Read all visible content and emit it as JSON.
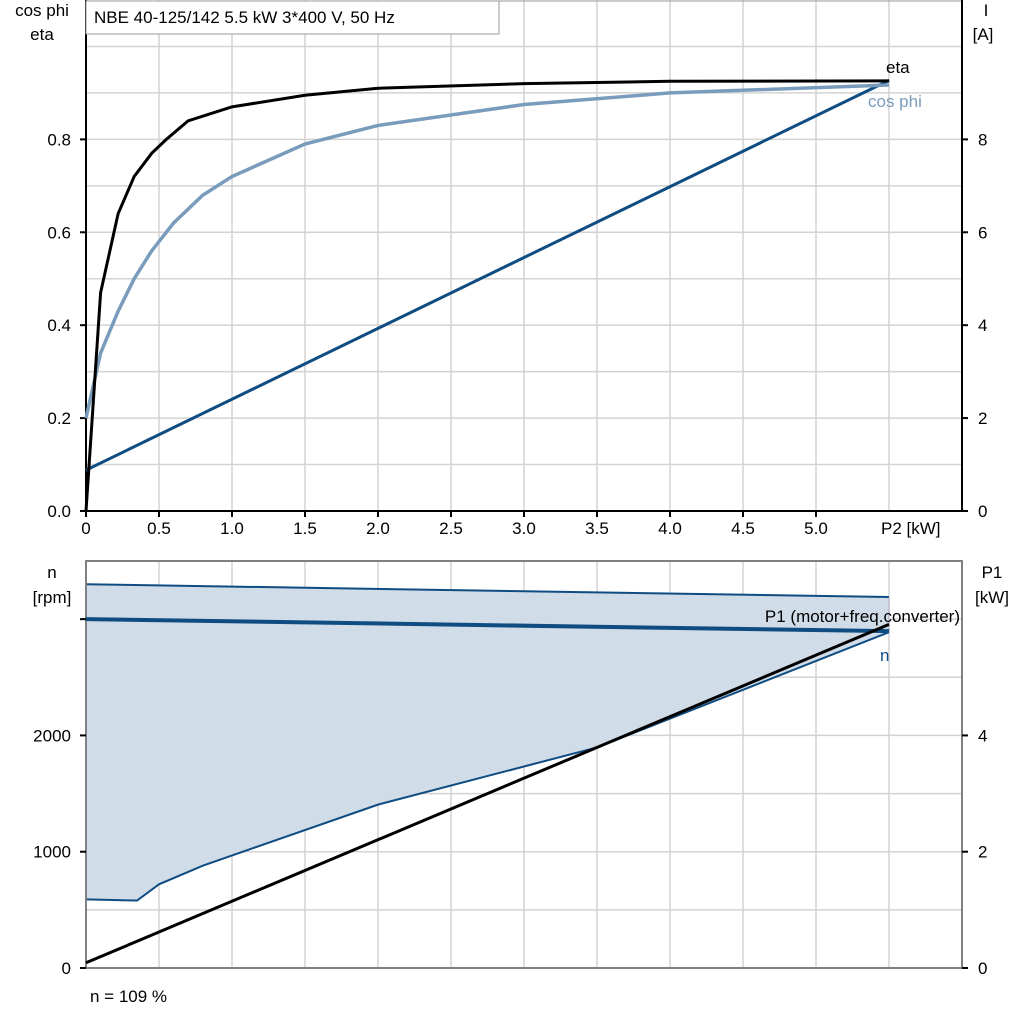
{
  "colors": {
    "eta": "#000000",
    "cos_phi": "#7a9cbc",
    "current": "#0f4c81",
    "n": "#0f4c81",
    "fill": "#d0dce7",
    "p1": "#000000",
    "grid": "#d3d3d3"
  },
  "chart_data": [
    {
      "type": "line",
      "title": "NBE 40-125/142   5.5 kW   3*400 V, 50 Hz",
      "xlabel": "P2 [kW]",
      "ylabel_left": [
        "cos phi",
        "eta"
      ],
      "ylabel_right": [
        "I",
        "[A]"
      ],
      "xlim": [
        0,
        6
      ],
      "ylim_left": [
        0,
        1.1
      ],
      "ylim_right": [
        0,
        11
      ],
      "x_ticks": [
        "0",
        "0.5",
        "1.0",
        "1.5",
        "2.0",
        "2.5",
        "3.0",
        "3.5",
        "4.0",
        "4.5",
        "5.0"
      ],
      "y_left_ticks": [
        "0.0",
        "0.2",
        "0.4",
        "0.6",
        "0.8"
      ],
      "y_right_ticks": [
        "0",
        "2",
        "4",
        "6",
        "8"
      ],
      "grid": true,
      "series": [
        {
          "name": "eta",
          "axis": "left",
          "x": [
            0,
            0.1,
            0.22,
            0.33,
            0.45,
            0.55,
            0.7,
            1.0,
            1.5,
            2.0,
            3.0,
            4.0,
            5.5
          ],
          "y": [
            0,
            0.47,
            0.64,
            0.72,
            0.77,
            0.8,
            0.84,
            0.87,
            0.895,
            0.91,
            0.92,
            0.925,
            0.926
          ]
        },
        {
          "name": "cos phi",
          "axis": "left",
          "x": [
            0,
            0.1,
            0.22,
            0.33,
            0.45,
            0.6,
            0.8,
            1.0,
            1.5,
            2.0,
            3.0,
            4.0,
            5.5
          ],
          "y": [
            0.2,
            0.34,
            0.43,
            0.5,
            0.56,
            0.62,
            0.68,
            0.72,
            0.79,
            0.83,
            0.875,
            0.9,
            0.917
          ]
        },
        {
          "axis": "right",
          "x": [
            0,
            5.5
          ],
          "y": [
            0.88,
            9.27
          ]
        }
      ]
    },
    {
      "type": "area",
      "ylabel_left": [
        "n",
        "[rpm]"
      ],
      "ylabel_right": [
        "P1",
        "[kW]"
      ],
      "xlim": [
        0,
        6
      ],
      "ylim_left": [
        0,
        3500
      ],
      "ylim_right": [
        0,
        7
      ],
      "y_left_ticks": [
        "0",
        "1000",
        "2000"
      ],
      "y_right_ticks": [
        "0",
        "2",
        "4"
      ],
      "grid": true,
      "annotation": "n = 109 %",
      "n_range_upper": {
        "x": [
          0,
          5.5
        ],
        "y": [
          3300,
          3190
        ]
      },
      "n_range_lower": {
        "x": [
          0,
          0.35,
          0.5,
          0.8,
          2.0,
          3.5,
          5.5
        ],
        "y": [
          590,
          580,
          720,
          880,
          1405,
          1897,
          2888
        ]
      },
      "series": [
        {
          "name": "n",
          "axis": "left",
          "x": [
            0,
            5.5
          ],
          "y": [
            3000,
            2897
          ]
        },
        {
          "name": "P1 (motor+freq.converter)",
          "axis": "right",
          "x": [
            0,
            5.5
          ],
          "y": [
            0.09,
            5.91
          ]
        }
      ]
    }
  ]
}
